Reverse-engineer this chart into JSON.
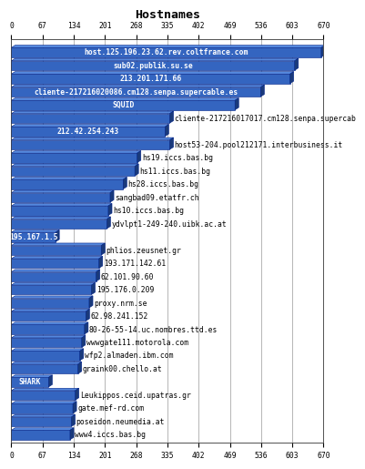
{
  "title": "Hostnames",
  "xlim": [
    0,
    670
  ],
  "xticks": [
    0,
    67,
    134,
    201,
    268,
    335,
    402,
    469,
    536,
    603,
    670
  ],
  "bars": [
    {
      "label": "host.125.196.23.62.rev.coltfrance.com",
      "value": 665,
      "text_inside": true
    },
    {
      "label": "sub02.publik.su.se",
      "value": 608,
      "text_inside": true
    },
    {
      "label": "213.201.171.66",
      "value": 598,
      "text_inside": true
    },
    {
      "label": "cliente-217216020086.cm128.senpa.supercable.es",
      "value": 535,
      "text_inside": true
    },
    {
      "label": "SQUID",
      "value": 480,
      "text_inside": true
    },
    {
      "label": "cliente-217216017017.cm128.senpa.supercab",
      "value": 340,
      "text_inside": false
    },
    {
      "label": "212.42.254.243",
      "value": 330,
      "text_inside": true
    },
    {
      "label": "host53-204.pool212171.interbusiness.it",
      "value": 340,
      "text_inside": false
    },
    {
      "label": "hs19.iccs.bas.bg",
      "value": 270,
      "text_inside": false
    },
    {
      "label": "hs11.iccs.bas.bg",
      "value": 265,
      "text_inside": false
    },
    {
      "label": "hs28.iccs.bas.bg",
      "value": 240,
      "text_inside": false
    },
    {
      "label": "sangbad09.etatfr.ch",
      "value": 212,
      "text_inside": false
    },
    {
      "label": "hs10.iccs.bas.bg",
      "value": 208,
      "text_inside": false
    },
    {
      "label": "ydvlpt1-249-240.uibk.ac.at",
      "value": 205,
      "text_inside": false
    },
    {
      "label": "195.167.1.5",
      "value": 95,
      "text_inside": true
    },
    {
      "label": "phlios.zeusnet.gr",
      "value": 193,
      "text_inside": false
    },
    {
      "label": "193.171.142.61",
      "value": 188,
      "text_inside": false
    },
    {
      "label": "62.101.90.60",
      "value": 182,
      "text_inside": false
    },
    {
      "label": "195.176.0.209",
      "value": 172,
      "text_inside": false
    },
    {
      "label": "proxy.nrm.se",
      "value": 167,
      "text_inside": false
    },
    {
      "label": "62.98.241.152",
      "value": 160,
      "text_inside": false
    },
    {
      "label": "80-26-55-14.uc.nombres.ttd.es",
      "value": 157,
      "text_inside": false
    },
    {
      "label": "wwwgate111.motorola.com",
      "value": 151,
      "text_inside": false
    },
    {
      "label": "wfp2.almaden.ibm.com",
      "value": 147,
      "text_inside": false
    },
    {
      "label": "graink00.chello.at",
      "value": 143,
      "text_inside": false
    },
    {
      "label": "SHARK",
      "value": 80,
      "text_inside": true
    },
    {
      "label": "Leukippos.ceid.upatras.gr",
      "value": 137,
      "text_inside": false
    },
    {
      "label": "gate.mef-rd.com",
      "value": 132,
      "text_inside": false
    },
    {
      "label": "poseidon.neumedia.at",
      "value": 129,
      "text_inside": false
    },
    {
      "label": "www4.iccs.bas.bg",
      "value": 126,
      "text_inside": false
    }
  ],
  "bar_face_color": "#3465c0",
  "bar_top_color": "#5588dd",
  "bar_side_color": "#1a3a7a",
  "bar_edge_color": "#002288",
  "background_color": "#ffffff",
  "grid_color": "#999999",
  "text_inside_color": "#ffffff",
  "text_outside_color": "#000000",
  "font_size": 5.8,
  "title_fontsize": 9.5
}
